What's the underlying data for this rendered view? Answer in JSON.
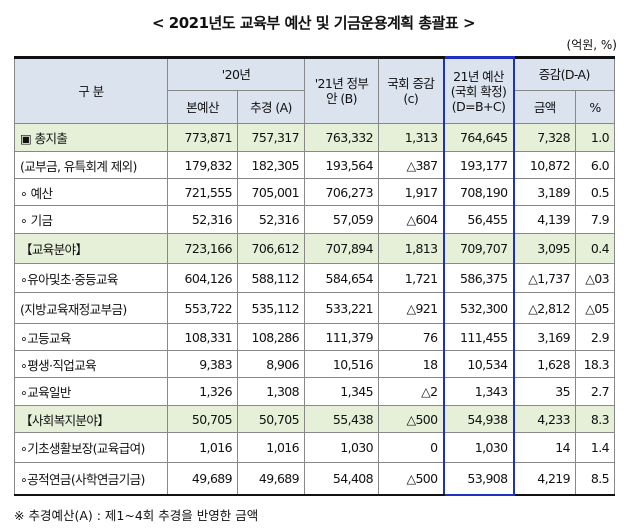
{
  "title": "< 2021년도 교육부 예산 및 기금운용계획 총괄표 >",
  "unit": "(억원, %)",
  "headers": {
    "category": "구 분",
    "y20": "'20년",
    "base": "본예산",
    "supp": "추경 (A)",
    "gov21": "'21년 정부안 (B)",
    "assembly": "국회 증감 (c)",
    "final21": "21년 예산 (국회 확정) (D=B+C)",
    "change": "증감(D-A)",
    "amount": "금액",
    "pct": "%"
  },
  "rows": [
    {
      "label": "▣ 총지출",
      "v": [
        "773,871",
        "757,317",
        "763,332",
        "1,313",
        "764,645",
        "7,328",
        "1.0"
      ],
      "green": true
    },
    {
      "label": "(교부금, 유특회계 제외)",
      "v": [
        "179,832",
        "182,305",
        "193,564",
        "△387",
        "193,177",
        "10,872",
        "6.0"
      ]
    },
    {
      "label": " ∘ 예산",
      "v": [
        "721,555",
        "705,001",
        "706,273",
        "1,917",
        "708,190",
        "3,189",
        "0.5"
      ]
    },
    {
      "label": " ∘ 기금",
      "v": [
        "52,316",
        "52,316",
        "57,059",
        "△604",
        "56,455",
        "4,139",
        "7.9"
      ]
    },
    {
      "label": "【교육분야】",
      "v": [
        "723,166",
        "706,612",
        "707,894",
        "1,813",
        "709,707",
        "3,095",
        "0.4"
      ],
      "green": true
    },
    {
      "label": "∘유아및초·중등교육",
      "v": [
        "604,126",
        "588,112",
        "584,654",
        "1,721",
        "586,375",
        "△1,737",
        "△03"
      ]
    },
    {
      "label": " (지방교육재정교부금)",
      "v": [
        "553,722",
        "535,112",
        "533,221",
        "△921",
        "532,300",
        "△2,812",
        "△05"
      ]
    },
    {
      "label": "∘고등교육",
      "v": [
        "108,331",
        "108,286",
        "111,379",
        "76",
        "111,455",
        "3,169",
        "2.9"
      ]
    },
    {
      "label": "∘평생·직업교육",
      "v": [
        "9,383",
        "8,906",
        "10,516",
        "18",
        "10,534",
        "1,628",
        "18.3"
      ]
    },
    {
      "label": "∘교육일반",
      "v": [
        "1,326",
        "1,308",
        "1,345",
        "△2",
        "1,343",
        "35",
        "2.7"
      ]
    },
    {
      "label": "【사회복지분야】",
      "v": [
        "50,705",
        "50,705",
        "55,438",
        "△500",
        "54,938",
        "4,233",
        "8.3"
      ],
      "green": true
    },
    {
      "label": "∘기초생활보장(교육급여)",
      "v": [
        "1,016",
        "1,016",
        "1,030",
        "0",
        "1,030",
        "14",
        "1.4"
      ]
    },
    {
      "label": "∘공적연금(사학연금기금)",
      "v": [
        "49,689",
        "49,689",
        "54,408",
        "△500",
        "53,908",
        "4,219",
        "8.5"
      ]
    }
  ],
  "footnote": "※ 추경예산(A) : 제1~4회 추경을 반영한 금액"
}
